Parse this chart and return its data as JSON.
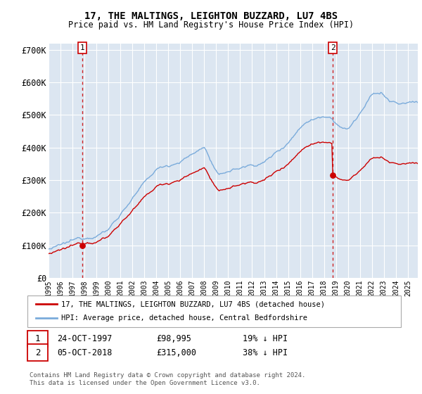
{
  "title": "17, THE MALTINGS, LEIGHTON BUZZARD, LU7 4BS",
  "subtitle": "Price paid vs. HM Land Registry's House Price Index (HPI)",
  "sale1_year": 1997.81,
  "sale1_price": 98995,
  "sale1_label": "24-OCT-1997",
  "sale1_price_str": "£98,995",
  "sale1_note": "19% ↓ HPI",
  "sale2_year": 2018.76,
  "sale2_price": 315000,
  "sale2_label": "05-OCT-2018",
  "sale2_price_str": "£315,000",
  "sale2_note": "38% ↓ HPI",
  "legend_property": "17, THE MALTINGS, LEIGHTON BUZZARD, LU7 4BS (detached house)",
  "legend_hpi": "HPI: Average price, detached house, Central Bedfordshire",
  "footer": "Contains HM Land Registry data © Crown copyright and database right 2024.\nThis data is licensed under the Open Government Licence v3.0.",
  "property_color": "#cc0000",
  "hpi_color": "#7aabdb",
  "background_color": "#dce6f1",
  "grid_color": "#ffffff",
  "vline_color": "#cc0000",
  "ylim": [
    0,
    720000
  ],
  "yticks": [
    0,
    100000,
    200000,
    300000,
    400000,
    500000,
    600000,
    700000
  ],
  "ytick_labels": [
    "£0",
    "£100K",
    "£200K",
    "£300K",
    "£400K",
    "£500K",
    "£600K",
    "£700K"
  ],
  "xmin": 1995.0,
  "xmax": 2025.83
}
